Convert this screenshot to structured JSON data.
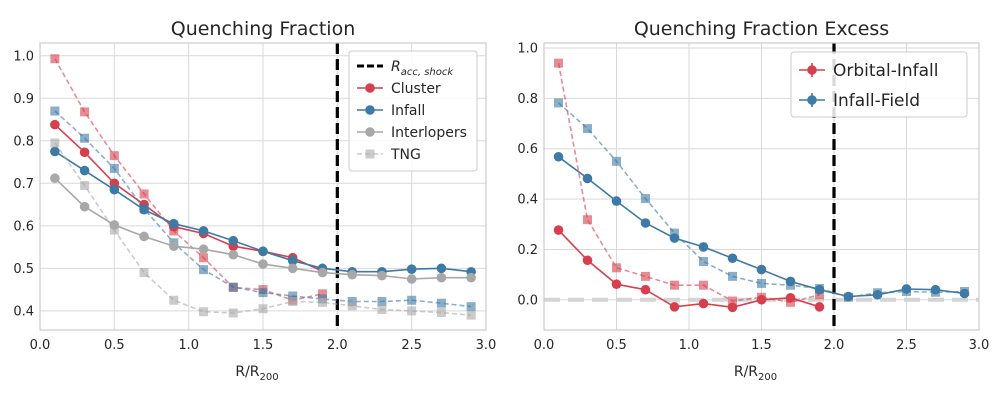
{
  "chart_data": [
    {
      "type": "line",
      "title": "Quenching Fraction",
      "xlabel": "R/R",
      "xlabel_sub": "200",
      "ylabel": "",
      "xlim": [
        0.0,
        3.0
      ],
      "ylim": [
        0.355,
        1.03
      ],
      "xticks": [
        0.0,
        0.5,
        1.0,
        1.5,
        2.0,
        2.5,
        3.0
      ],
      "xtick_labels": [
        "0.0",
        "0.5",
        "1.0",
        "1.5",
        "2.0",
        "2.5",
        "3.0"
      ],
      "yticks": [
        0.4,
        0.5,
        0.6,
        0.7,
        0.8,
        0.9,
        1.0
      ],
      "ytick_labels": [
        "0.4",
        "0.5",
        "0.6",
        "0.7",
        "0.8",
        "0.9",
        "1.0"
      ],
      "grid": true,
      "vline": {
        "x": 2.0,
        "color": "#000000",
        "label": "R",
        "label_sub": "acc, shock"
      },
      "legend": {
        "position": "top-right"
      },
      "series": [
        {
          "name": "Cluster",
          "color": "#d6404e",
          "style": "solid",
          "marker": "circle",
          "x": [
            0.1,
            0.3,
            0.5,
            0.7,
            0.9,
            1.1,
            1.3,
            1.5,
            1.7,
            1.9
          ],
          "y": [
            0.838,
            0.773,
            0.7,
            0.65,
            0.598,
            0.582,
            0.552,
            0.54,
            0.525,
            0.493
          ]
        },
        {
          "name": "",
          "color": "#d6404e",
          "style": "dashed",
          "marker": "square",
          "x": [
            0.1,
            0.3,
            0.5,
            0.7,
            0.9,
            1.1,
            1.3,
            1.5,
            1.7,
            1.9
          ],
          "y": [
            0.993,
            0.868,
            0.765,
            0.675,
            0.588,
            0.525,
            0.455,
            0.45,
            0.425,
            0.44
          ]
        },
        {
          "name": "Infall",
          "color": "#3d7aa5",
          "style": "solid",
          "marker": "circle",
          "x": [
            0.1,
            0.3,
            0.5,
            0.7,
            0.9,
            1.1,
            1.3,
            1.5,
            1.7,
            1.9,
            2.1,
            2.3,
            2.5,
            2.7,
            2.9
          ],
          "y": [
            0.775,
            0.73,
            0.685,
            0.638,
            0.605,
            0.588,
            0.565,
            0.54,
            0.518,
            0.5,
            0.492,
            0.492,
            0.498,
            0.5,
            0.492
          ]
        },
        {
          "name": "",
          "color": "#3d7aa5",
          "style": "dashed",
          "marker": "square",
          "x": [
            0.1,
            0.3,
            0.5,
            0.7,
            0.9,
            1.1,
            1.3,
            1.5,
            1.7,
            1.9,
            2.1,
            2.3,
            2.5,
            2.7,
            2.9
          ],
          "y": [
            0.87,
            0.806,
            0.735,
            0.64,
            0.56,
            0.497,
            0.456,
            0.443,
            0.435,
            0.428,
            0.422,
            0.422,
            0.425,
            0.418,
            0.41
          ]
        },
        {
          "name": "Interlopers",
          "color": "#a8a8a8",
          "style": "solid",
          "marker": "circle",
          "x": [
            0.1,
            0.3,
            0.5,
            0.7,
            0.9,
            1.1,
            1.3,
            1.5,
            1.7,
            1.9,
            2.1,
            2.3,
            2.5,
            2.7,
            2.9
          ],
          "y": [
            0.712,
            0.645,
            0.602,
            0.575,
            0.552,
            0.545,
            0.532,
            0.51,
            0.5,
            0.49,
            0.485,
            0.483,
            0.475,
            0.478,
            0.478
          ]
        },
        {
          "name": "TNG",
          "color": "#a8a8a8",
          "style": "dashed",
          "marker": "square",
          "x": [
            0.1,
            0.3,
            0.5,
            0.7,
            0.9,
            1.1,
            1.3,
            1.5,
            1.7,
            1.9,
            2.1,
            2.3,
            2.5,
            2.7,
            2.9
          ],
          "y": [
            0.795,
            0.695,
            0.59,
            0.49,
            0.425,
            0.398,
            0.395,
            0.405,
            0.422,
            0.42,
            0.412,
            0.403,
            0.4,
            0.396,
            0.39
          ]
        }
      ]
    },
    {
      "type": "line",
      "title": "Quenching Fraction Excess",
      "xlabel": "R/R",
      "xlabel_sub": "200",
      "ylabel": "",
      "xlim": [
        0.0,
        3.0
      ],
      "ylim": [
        -0.12,
        1.02
      ],
      "xticks": [
        0.0,
        0.5,
        1.0,
        1.5,
        2.0,
        2.5,
        3.0
      ],
      "xtick_labels": [
        "0.0",
        "0.5",
        "1.0",
        "1.5",
        "2.0",
        "2.5",
        "3.0"
      ],
      "yticks": [
        0.0,
        0.2,
        0.4,
        0.6,
        0.8,
        1.0
      ],
      "ytick_labels": [
        "0.0",
        "0.2",
        "0.4",
        "0.6",
        "0.8",
        "1.0"
      ],
      "grid": true,
      "vline": {
        "x": 2.0,
        "color": "#000000"
      },
      "hline": {
        "y": 0.0,
        "color": "#d4d4d4"
      },
      "legend": {
        "position": "top-right"
      },
      "series": [
        {
          "name": "Orbital-Infall",
          "color": "#d6404e",
          "style": "solid",
          "marker": "circle",
          "x": [
            0.1,
            0.3,
            0.5,
            0.7,
            0.9,
            1.1,
            1.3,
            1.5,
            1.7,
            1.9
          ],
          "y": [
            0.277,
            0.157,
            0.062,
            0.04,
            -0.028,
            -0.015,
            -0.03,
            0.0,
            0.008,
            -0.028
          ]
        },
        {
          "name": "",
          "color": "#d6404e",
          "style": "dashed",
          "marker": "square",
          "x": [
            0.1,
            0.3,
            0.5,
            0.7,
            0.9,
            1.1,
            1.3,
            1.5,
            1.7,
            1.9
          ],
          "y": [
            0.94,
            0.318,
            0.127,
            0.093,
            0.058,
            0.058,
            -0.005,
            0.01,
            -0.01,
            0.02
          ]
        },
        {
          "name": "Infall-Field",
          "color": "#3d7aa5",
          "style": "solid",
          "marker": "circle",
          "x": [
            0.1,
            0.3,
            0.5,
            0.7,
            0.9,
            1.1,
            1.3,
            1.5,
            1.7,
            1.9,
            2.1,
            2.3,
            2.5,
            2.7,
            2.9
          ],
          "y": [
            0.568,
            0.482,
            0.392,
            0.305,
            0.245,
            0.21,
            0.165,
            0.12,
            0.073,
            0.04,
            0.013,
            0.02,
            0.043,
            0.04,
            0.025
          ]
        },
        {
          "name": "",
          "color": "#3d7aa5",
          "style": "dashed",
          "marker": "square",
          "x": [
            0.1,
            0.3,
            0.5,
            0.7,
            0.9,
            1.1,
            1.3,
            1.5,
            1.7,
            1.9,
            2.1,
            2.3,
            2.5,
            2.7,
            2.9
          ],
          "y": [
            0.782,
            0.68,
            0.55,
            0.402,
            0.265,
            0.152,
            0.093,
            0.065,
            0.058,
            0.045,
            0.01,
            0.028,
            0.033,
            0.03,
            0.033
          ]
        }
      ]
    }
  ]
}
